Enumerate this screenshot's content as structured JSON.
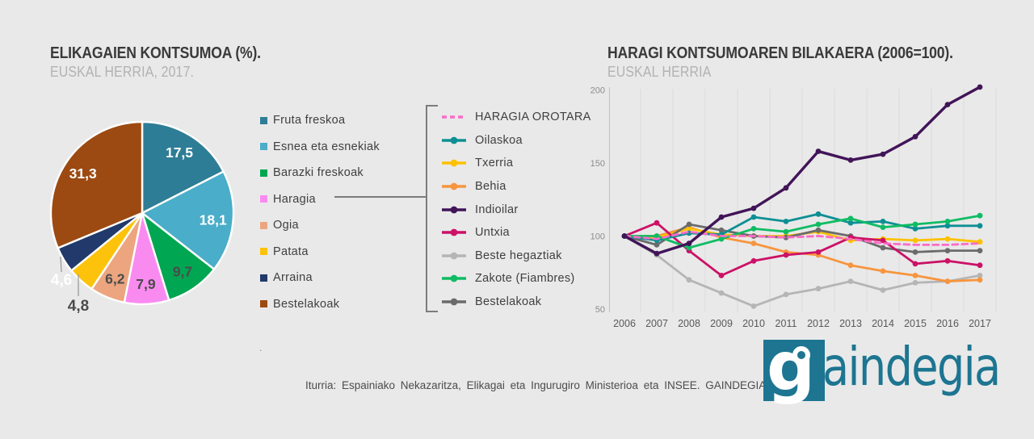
{
  "page": {
    "background": "#e9e9e9"
  },
  "left_chart": {
    "title": "ELIKAGAIEN KONTSUMOA (%).",
    "subtitle": "EUSKAL HERRIA, 2017."
  },
  "right_chart": {
    "title": "HARAGI KONTSUMOAREN BILAKAERA (2006=100).",
    "subtitle": "EUSKAL HERRIA"
  },
  "footer": {
    "source": "Iturria: Espainiako Nekazaritza, Elikagai eta Ingurugiro Ministerioa eta INSEE. GAINDEGIA.",
    "stray_dot": ".",
    "logo_letter": "g",
    "logo_text": "aindegia",
    "logo_color": "#1d7591"
  },
  "chart_data": [
    {
      "type": "pie",
      "title": "ELIKAGAIEN KONTSUMOA (%).",
      "subtitle": "EUSKAL HERRIA, 2017.",
      "start_angle_deg": 0,
      "direction": "clockwise",
      "slices": [
        {
          "label": "Fruta freskoa",
          "value": 17.5,
          "display": "17,5",
          "color": "#2e7d96",
          "label_color": "#ffffff",
          "label_placement": "inside"
        },
        {
          "label": "Esnea eta esnekiak",
          "value": 18.1,
          "display": "18,1",
          "color": "#4aadc9",
          "label_color": "#ffffff",
          "label_placement": "inside"
        },
        {
          "label": "Barazki freskoak",
          "value": 9.7,
          "display": "9,7",
          "color": "#00a651",
          "label_color": "#4b4b4b",
          "label_placement": "inside"
        },
        {
          "label": "Haragia",
          "value": 7.9,
          "display": "7,9",
          "color": "#f98bf0",
          "label_color": "#4b4b4b",
          "label_placement": "inside"
        },
        {
          "label": "Ogia",
          "value": 6.2,
          "display": "6,2",
          "color": "#eca57f",
          "label_color": "#4b4b4b",
          "label_placement": "inside"
        },
        {
          "label": "Patata",
          "value": 4.8,
          "display": "4,8",
          "color": "#fdc20b",
          "label_color": "#4b4b4b",
          "label_placement": "outside"
        },
        {
          "label": "Arraina",
          "value": 4.6,
          "display": "4,6",
          "color": "#21396b",
          "label_color": "#ffffff",
          "label_placement": "outside"
        },
        {
          "label": "Bestelakoak",
          "value": 31.3,
          "display": "31,3",
          "color": "#9c4a12",
          "label_color": "#ffffff",
          "label_placement": "inside"
        }
      ]
    },
    {
      "type": "line",
      "title": "HARAGI KONTSUMOAREN BILAKAERA (2006=100).",
      "subtitle": "EUSKAL HERRIA",
      "x": [
        2006,
        2007,
        2008,
        2009,
        2010,
        2011,
        2012,
        2013,
        2014,
        2015,
        2016,
        2017
      ],
      "ylim": [
        50,
        200
      ],
      "yticks": [
        50,
        100,
        150,
        200
      ],
      "grid": "vertical-only",
      "legend_position": "left",
      "series": [
        {
          "name": "HARAGIA OROTARA",
          "color": "#fb6bc8",
          "style": "dashed",
          "values": [
            100,
            98,
            103,
            100,
            100,
            99,
            100,
            98,
            95,
            94,
            94,
            95
          ]
        },
        {
          "name": "Oilaskoa",
          "color": "#0d8f94",
          "style": "solid",
          "values": [
            100,
            97,
            102,
            101,
            113,
            110,
            115,
            109,
            110,
            105,
            107,
            107
          ]
        },
        {
          "name": "Txerria",
          "color": "#fdc100",
          "style": "solid",
          "values": [
            100,
            99,
            105,
            101,
            100,
            100,
            103,
            97,
            98,
            97,
            98,
            96
          ]
        },
        {
          "name": "Behia",
          "color": "#f7953e",
          "style": "solid",
          "values": [
            100,
            100,
            106,
            99,
            95,
            89,
            87,
            80,
            76,
            73,
            69,
            70
          ]
        },
        {
          "name": "Indioilar",
          "color": "#411458",
          "style": "solid",
          "values": [
            100,
            88,
            95,
            113,
            119,
            133,
            158,
            152,
            156,
            168,
            190,
            202
          ]
        },
        {
          "name": "Untxia",
          "color": "#cc1166",
          "style": "solid",
          "values": [
            100,
            109,
            90,
            73,
            83,
            87,
            89,
            99,
            97,
            81,
            83,
            80
          ]
        },
        {
          "name": "Beste hegaztiak",
          "color": "#b5b5b5",
          "style": "solid",
          "values": [
            100,
            87,
            70,
            61,
            52,
            60,
            64,
            69,
            63,
            68,
            69,
            73
          ]
        },
        {
          "name": "Zakote (Fiambres)",
          "color": "#0fbc63",
          "style": "solid",
          "values": [
            100,
            100,
            92,
            98,
            105,
            103,
            108,
            112,
            106,
            108,
            110,
            114
          ]
        },
        {
          "name": "Bestelakoak",
          "color": "#6b6b6b",
          "style": "solid",
          "values": [
            100,
            94,
            108,
            104,
            100,
            99,
            104,
            100,
            92,
            89,
            90,
            90
          ]
        }
      ]
    }
  ]
}
